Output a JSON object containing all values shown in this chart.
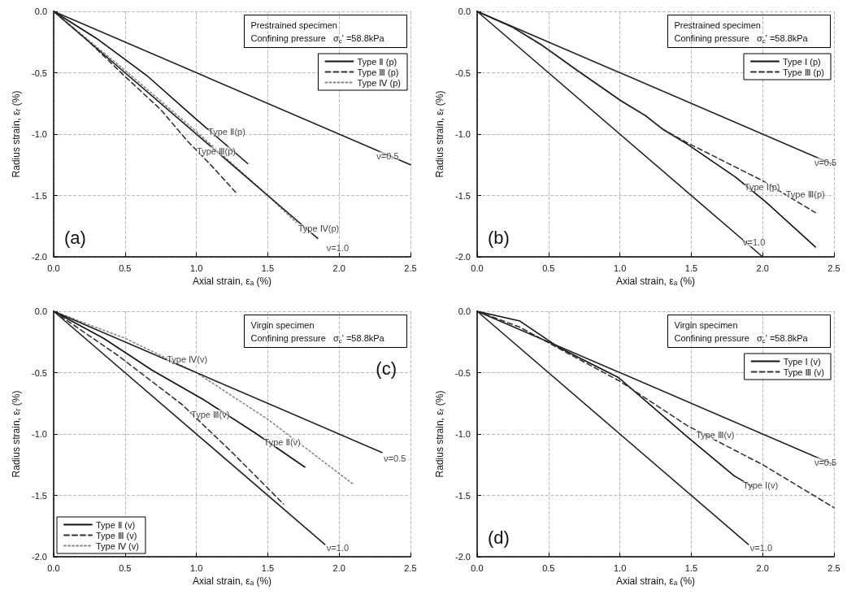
{
  "chart_data": [
    {
      "type": "line",
      "title": "(a)",
      "xlabel": "Axial strain, εₐ (%)",
      "ylabel": "Radius strain, εᵣ (%)",
      "xlim": [
        0,
        2.5
      ],
      "ylim": [
        -2,
        0
      ],
      "xticks": [
        {
          "value": 0,
          "label": "0.0"
        },
        {
          "value": 0.5,
          "label": "0.5"
        },
        {
          "value": 1,
          "label": "1.0"
        },
        {
          "value": 1.5,
          "label": "1.5"
        },
        {
          "value": 2,
          "label": "2.0"
        },
        {
          "value": 2.5,
          "label": "2.5"
        }
      ],
      "yticks": [
        {
          "value": 0,
          "label": "0.0"
        },
        {
          "value": -0.5,
          "label": "-0.5"
        },
        {
          "value": -1,
          "label": "-1.0"
        },
        {
          "value": -1.5,
          "label": "-1.5"
        },
        {
          "value": -2,
          "label": "-2.0"
        }
      ],
      "grid": true,
      "legend": "top right",
      "marker": "none",
      "annotations": [
        "Prestrained specimen",
        "Confining pressure   σ$_{c}$' =58.8kPa",
        {
          "text": "Type Ⅱ(p)",
          "x": 1.02,
          "y": -0.9
        },
        {
          "text": "Type Ⅲ(p)",
          "x": 0.94,
          "y": -1.06
        },
        {
          "text": "Type Ⅳ(p)",
          "x": 1.65,
          "y": -1.69
        },
        {
          "text": "ν=0.5",
          "x": 2.2,
          "y": -1.1
        },
        {
          "text": "ν=1.0",
          "x": 1.85,
          "y": -1.85
        }
      ],
      "series": [
        {
          "name": "Type Ⅱ (p)",
          "color": "#111111",
          "line_style": "solid",
          "x": [
            0,
            0.3,
            0.65,
            1.0,
            1.36
          ],
          "values": [
            0,
            -0.22,
            -0.52,
            -0.88,
            -1.24
          ]
        },
        {
          "name": "Type Ⅲ (p)",
          "color": "#333333",
          "line_style": "dashed",
          "x": [
            0,
            0.25,
            0.5,
            0.75,
            0.94,
            1.1,
            1.28
          ],
          "values": [
            0,
            -0.25,
            -0.53,
            -0.8,
            -1.06,
            -1.25,
            -1.48
          ]
        },
        {
          "name": "Type Ⅳ (p)",
          "color": "#888888",
          "line_style": "dotted",
          "x": [
            0,
            0.5,
            1.0,
            1.5,
            1.7
          ],
          "values": [
            0,
            -0.48,
            -0.98,
            -1.5,
            -1.72
          ]
        },
        {
          "color": "#222222",
          "line_style": "solid",
          "x": [
            0,
            2.5
          ],
          "values": [
            0,
            -1.25
          ]
        },
        {
          "color": "#222222",
          "line_style": "solid",
          "x": [
            0,
            1.85
          ],
          "values": [
            0,
            -1.85
          ]
        }
      ]
    },
    {
      "type": "line",
      "title": "(b)",
      "xlabel": "Axial strain, εₐ (%)",
      "ylabel": "Radius strain, εᵣ (%)",
      "xlim": [
        0,
        2.5
      ],
      "ylim": [
        -2,
        0
      ],
      "xticks": [
        {
          "value": 0,
          "label": "0.0"
        },
        {
          "value": 0.5,
          "label": "0.5"
        },
        {
          "value": 1,
          "label": "1.0"
        },
        {
          "value": 1.5,
          "label": "1.5"
        },
        {
          "value": 2,
          "label": "2.0"
        },
        {
          "value": 2.5,
          "label": "2.5"
        }
      ],
      "yticks": [
        {
          "value": 0,
          "label": "0.0"
        },
        {
          "value": -0.5,
          "label": "-0.5"
        },
        {
          "value": -1,
          "label": "-1.0"
        },
        {
          "value": -1.5,
          "label": "-1.5"
        },
        {
          "value": -2,
          "label": "-2.0"
        }
      ],
      "grid": true,
      "legend": "top right",
      "marker": "none",
      "annotations": [
        "Prestrained specimen",
        "Confining pressure   σ$_{c}$' =58.8kPa",
        {
          "text": "Type Ⅲ(p)",
          "x": 2.1,
          "y": -1.41
        },
        {
          "text": "Type Ⅰ(p)",
          "x": 1.81,
          "y": -1.35
        },
        {
          "text": "ν=0.5",
          "x": 2.3,
          "y": -1.15
        },
        {
          "text": "ν=1.0",
          "x": 1.8,
          "y": -1.8
        }
      ],
      "series": [
        {
          "name": "Type Ⅰ (p)",
          "color": "#111111",
          "line_style": "solid",
          "x": [
            0,
            0.25,
            0.46,
            0.7,
            1.01,
            1.18,
            1.3,
            1.47,
            1.81,
            2.02,
            2.37
          ],
          "values": [
            0,
            -0.13,
            -0.28,
            -0.48,
            -0.73,
            -0.85,
            -0.96,
            -1.08,
            -1.35,
            -1.55,
            -1.92
          ]
        },
        {
          "name": "Type Ⅲ (p)",
          "color": "#333333",
          "line_style": "dashed",
          "x": [
            0,
            0.25,
            0.46,
            0.7,
            1.01,
            1.18,
            1.3,
            1.47,
            2.0,
            2.37
          ],
          "values": [
            0,
            -0.13,
            -0.28,
            -0.48,
            -0.73,
            -0.85,
            -0.96,
            -1.07,
            -1.38,
            -1.64
          ]
        },
        {
          "color": "#222222",
          "line_style": "solid",
          "x": [
            0,
            2.5
          ],
          "values": [
            0,
            -1.25
          ]
        },
        {
          "color": "#222222",
          "line_style": "solid",
          "x": [
            0,
            2.0
          ],
          "values": [
            0,
            -2.0
          ]
        }
      ]
    },
    {
      "type": "line",
      "title": "(c)",
      "xlabel": "Axial strain, εₐ (%)",
      "ylabel": "Radius strain, εᵣ (%)",
      "xlim": [
        0,
        2.5
      ],
      "ylim": [
        -2,
        0
      ],
      "xticks": [
        {
          "value": 0,
          "label": "0.0"
        },
        {
          "value": 0.5,
          "label": "0.5"
        },
        {
          "value": 1,
          "label": "1.0"
        },
        {
          "value": 1.5,
          "label": "1.5"
        },
        {
          "value": 2,
          "label": "2.0"
        },
        {
          "value": 2.5,
          "label": "2.5"
        }
      ],
      "yticks": [
        {
          "value": 0,
          "label": "0.0"
        },
        {
          "value": -0.5,
          "label": "-0.5"
        },
        {
          "value": -1,
          "label": "-1.0"
        },
        {
          "value": -1.5,
          "label": "-1.5"
        },
        {
          "value": -2,
          "label": "-2.0"
        }
      ],
      "grid": true,
      "legend": "bottom left",
      "marker": "none",
      "annotations": [
        "Virgin specimen",
        "Confining pressure   σ$_{c}$' =58.8kPa",
        {
          "text": "Type Ⅳ(v)",
          "x": 0.73,
          "y": -0.31
        },
        {
          "text": "Type Ⅲ(v)",
          "x": 0.9,
          "y": -0.76
        },
        {
          "text": "Type Ⅱ(v)",
          "x": 1.41,
          "y": -0.99
        },
        {
          "text": "ν=0.5",
          "x": 2.25,
          "y": -1.12
        },
        {
          "text": "ν=1.0",
          "x": 1.85,
          "y": -1.85
        }
      ],
      "series": [
        {
          "name": "Type Ⅱ (v)",
          "color": "#111111",
          "line_style": "solid",
          "x": [
            0,
            0.35,
            0.69,
            1.05,
            1.41,
            1.76
          ],
          "values": [
            0,
            -0.22,
            -0.48,
            -0.72,
            -0.99,
            -1.27
          ]
        },
        {
          "name": "Type Ⅲ (v)",
          "color": "#333333",
          "line_style": "dashed",
          "x": [
            0,
            0.45,
            0.9,
            1.25,
            1.61
          ],
          "values": [
            0,
            -0.36,
            -0.76,
            -1.15,
            -1.57
          ]
        },
        {
          "name": "Type Ⅳ (v)",
          "color": "#888888",
          "line_style": "dotted",
          "x": [
            0,
            0.5,
            1.0,
            1.5,
            2.1
          ],
          "values": [
            0,
            -0.22,
            -0.5,
            -0.88,
            -1.41
          ]
        },
        {
          "color": "#222222",
          "line_style": "solid",
          "x": [
            0,
            2.3
          ],
          "values": [
            0,
            -1.15
          ]
        },
        {
          "color": "#222222",
          "line_style": "solid",
          "x": [
            0,
            1.9
          ],
          "values": [
            0,
            -1.9
          ]
        }
      ]
    },
    {
      "type": "line",
      "title": "(d)",
      "xlabel": "Axial strain, εₐ (%)",
      "ylabel": "Radius strain, εᵣ (%)",
      "xlim": [
        0,
        2.5
      ],
      "ylim": [
        -2,
        0
      ],
      "xticks": [
        {
          "value": 0,
          "label": "0.0"
        },
        {
          "value": 0.5,
          "label": "0.5"
        },
        {
          "value": 1,
          "label": "1.0"
        },
        {
          "value": 1.5,
          "label": "1.5"
        },
        {
          "value": 2,
          "label": "2.0"
        },
        {
          "value": 2.5,
          "label": "2.5"
        }
      ],
      "yticks": [
        {
          "value": 0,
          "label": "0.0"
        },
        {
          "value": -0.5,
          "label": "-0.5"
        },
        {
          "value": -1,
          "label": "-1.0"
        },
        {
          "value": -1.5,
          "label": "-1.5"
        },
        {
          "value": -2,
          "label": "-2.0"
        }
      ],
      "grid": true,
      "legend": "top right",
      "marker": "none",
      "annotations": [
        "Virgin specimen",
        "Confining pressure   σ$_{c}$' =58.8kPa",
        {
          "text": "Type Ⅲ(v)",
          "x": 1.47,
          "y": -0.93
        },
        {
          "text": "Type Ⅰ(v)",
          "x": 1.8,
          "y": -1.34
        },
        {
          "text": "ν=0.5",
          "x": 2.3,
          "y": -1.15
        },
        {
          "text": "ν=1.0",
          "x": 1.85,
          "y": -1.85
        }
      ],
      "series": [
        {
          "name": "Type Ⅰ (v)",
          "color": "#111111",
          "line_style": "solid",
          "x": [
            0,
            0.3,
            0.58,
            0.99,
            1.47,
            1.8,
            1.93
          ],
          "values": [
            0,
            -0.08,
            -0.3,
            -0.54,
            -1.02,
            -1.34,
            -1.43
          ]
        },
        {
          "name": "Type Ⅲ (v)",
          "color": "#333333",
          "line_style": "dashed",
          "x": [
            0,
            0.3,
            0.6,
            1.0,
            1.47,
            2.0,
            2.5
          ],
          "values": [
            0,
            -0.13,
            -0.32,
            -0.57,
            -0.93,
            -1.25,
            -1.6
          ]
        },
        {
          "color": "#222222",
          "line_style": "solid",
          "x": [
            0,
            2.5
          ],
          "values": [
            0,
            -1.25
          ]
        },
        {
          "color": "#222222",
          "line_style": "solid",
          "x": [
            0,
            1.9
          ],
          "values": [
            0,
            -1.9
          ]
        }
      ]
    }
  ]
}
